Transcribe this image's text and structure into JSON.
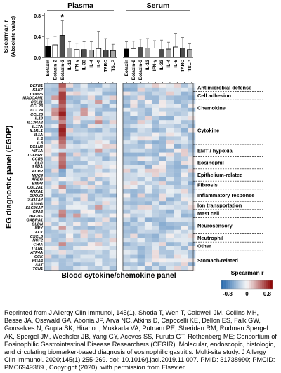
{
  "chart_data": [
    {
      "type": "bar",
      "panel_titles": [
        "Plasma",
        "Serum"
      ],
      "ylabel": "Spearman r\n(Absolute value)",
      "ylim": [
        0,
        0.8
      ],
      "yticks": [
        "0.8",
        "0.4",
        "0.0"
      ],
      "categories": [
        "Eotaxin",
        "Eotaxin-2",
        "Eotaxin-3",
        "IL-13",
        "IFN-γ",
        "IL-33",
        "IL-4",
        "IL-5",
        "TARC",
        "TSLP"
      ],
      "category_colors": [
        "#000000",
        "#ffffff",
        "#4d4d4d",
        "#a6a6a6",
        "#ffffff",
        "#4d4d4d",
        "#a6a6a6",
        "#ffffff",
        "#4d4d4d",
        "#a6a6a6"
      ],
      "series": [
        {
          "values": [
            0.22,
            0.24,
            0.42,
            0.18,
            0.15,
            0.15,
            0.14,
            0.17,
            0.14,
            0.13
          ],
          "errors": [
            0.14,
            0.16,
            0.28,
            0.12,
            0.12,
            0.15,
            0.16,
            0.33,
            0.22,
            0.12
          ]
        },
        {
          "values": [
            0.16,
            0.17,
            0.19,
            0.18,
            0.18,
            0.15,
            0.16,
            0.2,
            0.18,
            0.15
          ],
          "errors": [
            0.14,
            0.14,
            0.16,
            0.18,
            0.14,
            0.18,
            0.13,
            0.26,
            0.2,
            0.11
          ]
        }
      ],
      "annotations": [
        "*"
      ]
    },
    {
      "type": "heatmap",
      "ylabel": "EG diagnostic panel (EGDP)",
      "xlabel": "Blood cytokine/chemokine panel",
      "genes": [
        "DEFB1",
        "KLK7",
        "CDH26",
        "MADCAM1",
        "CCL11",
        "CCL23",
        "CCL24",
        "CCL26",
        "IL13",
        "IL13RA2",
        "IL17A",
        "IL1RL1",
        "IL1A",
        "IL4",
        "IL5",
        "EGLN3",
        "HIF1A",
        "TGFBR1",
        "CCR3",
        "CLC",
        "IL5RA",
        "ACPP",
        "MUC4",
        "AREG",
        "BMP3",
        "COL2A1",
        "ANXA1",
        "DUOX2",
        "DUOXA2",
        "S100G",
        "SLC26A7",
        "CPA3",
        "HPGDS",
        "GABRA1",
        "GLDN",
        "NPY",
        "TAC1",
        "CXCL6",
        "NCF2",
        "CHIA",
        "ITLN1",
        "ATP4A",
        "CCK",
        "PGA4",
        "SST",
        "TCN1"
      ],
      "groups": [
        {
          "label": "Antimicrobial defense",
          "start": 0,
          "end": 1
        },
        {
          "label": "Cell adhesion",
          "start": 2,
          "end": 3
        },
        {
          "label": "Chemokine",
          "start": 4,
          "end": 7
        },
        {
          "label": "Cytokine",
          "start": 8,
          "end": 14
        },
        {
          "label": "EMT / hypoxia",
          "start": 15,
          "end": 17
        },
        {
          "label": "Eosinophil",
          "start": 18,
          "end": 20
        },
        {
          "label": "Epithelium-related",
          "start": 21,
          "end": 23
        },
        {
          "label": "Fibrosis",
          "start": 24,
          "end": 25
        },
        {
          "label": "Inflammatory response",
          "start": 26,
          "end": 28
        },
        {
          "label": "Ion transportation",
          "start": 29,
          "end": 30
        },
        {
          "label": "Mast cell",
          "start": 31,
          "end": 32
        },
        {
          "label": "Neurosensory",
          "start": 33,
          "end": 36
        },
        {
          "label": "Neutrophil",
          "start": 37,
          "end": 38
        },
        {
          "label": "Other",
          "start": 39,
          "end": 40
        },
        {
          "label": "Stomach-related",
          "start": 41,
          "end": 45
        }
      ],
      "columns": [
        "Eotaxin",
        "Eotaxin-2",
        "Eotaxin-3",
        "IL-13",
        "IFN-γ",
        "IL-33",
        "IL-4",
        "IL-5",
        "TARC",
        "TSLP"
      ],
      "plasma_strong_cells": [
        [
          0,
          2,
          0.5
        ],
        [
          1,
          2,
          0.35
        ],
        [
          2,
          2,
          0.6
        ],
        [
          3,
          2,
          0.6
        ],
        [
          3,
          1,
          0.3
        ],
        [
          4,
          2,
          0.55
        ],
        [
          5,
          2,
          0.45
        ],
        [
          6,
          2,
          0.55
        ],
        [
          6,
          1,
          0.3
        ],
        [
          7,
          2,
          0.7
        ],
        [
          7,
          1,
          0.35
        ],
        [
          8,
          2,
          0.5
        ],
        [
          9,
          2,
          0.35
        ],
        [
          10,
          2,
          0.6
        ],
        [
          11,
          2,
          0.7
        ],
        [
          12,
          2,
          0.65
        ],
        [
          13,
          2,
          0.5
        ],
        [
          14,
          2,
          0.45
        ],
        [
          15,
          2,
          0.35
        ],
        [
          17,
          2,
          0.45
        ],
        [
          18,
          2,
          0.4
        ],
        [
          19,
          2,
          0.45
        ],
        [
          20,
          2,
          0.5
        ],
        [
          21,
          2,
          -0.45
        ],
        [
          22,
          2,
          -0.4
        ],
        [
          24,
          2,
          -0.35
        ],
        [
          25,
          2,
          0.35
        ],
        [
          27,
          2,
          -0.3
        ],
        [
          28,
          2,
          -0.35
        ],
        [
          31,
          2,
          0.35
        ],
        [
          32,
          2,
          0.4
        ],
        [
          35,
          2,
          0.3
        ],
        [
          39,
          2,
          0.35
        ],
        [
          43,
          2,
          -0.3
        ],
        [
          4,
          7,
          0.3
        ],
        [
          9,
          7,
          0.35
        ],
        [
          16,
          7,
          0.3
        ],
        [
          30,
          7,
          0.3
        ],
        [
          32,
          4,
          0.3
        ],
        [
          2,
          8,
          -0.35
        ],
        [
          6,
          5,
          0.3
        ],
        [
          7,
          5,
          0.3
        ]
      ],
      "colorbar": {
        "title": "Spearman r",
        "min_label": "-0.8",
        "mid_label": "0",
        "max_label": "0.8",
        "low_color": "#2166ac",
        "mid_color": "#f7f7f7",
        "high_color": "#8b0000"
      }
    }
  ],
  "caption": "Reprinted from J Allergy Clin Immunol, 145(1), Shoda T, Wen T, Caldwell JM, Collins MH, Besse JA, Osswald GA, Abonia JP, Arva NC, Atkins D, Capocelli KE, Dellon ES, Falk GW, Gonsalves N, Gupta SK, Hirano I, Mukkada VA, Putnam PE, Sheridan RM, Rudman Spergel AK, Spergel JM, Wechsler JB, Yang GY, Aceves SS, Furuta GT, Rothenberg ME; Consortium of Eosinophilic Gastrointestinal Disease Researchers (CEGIR). Molecular, endoscopic, histologic, and circulating biomarker-based diagnosis of eosinophilic gastritis: Multi-site study. J Allergy Clin Immunol. 2020;145(1):255-269. doi: 10.1016/j.jaci.2019.11.007. PMID: 31738990; PMCID: PMC6949389., Copyright (2020), with permission from Elsevier."
}
